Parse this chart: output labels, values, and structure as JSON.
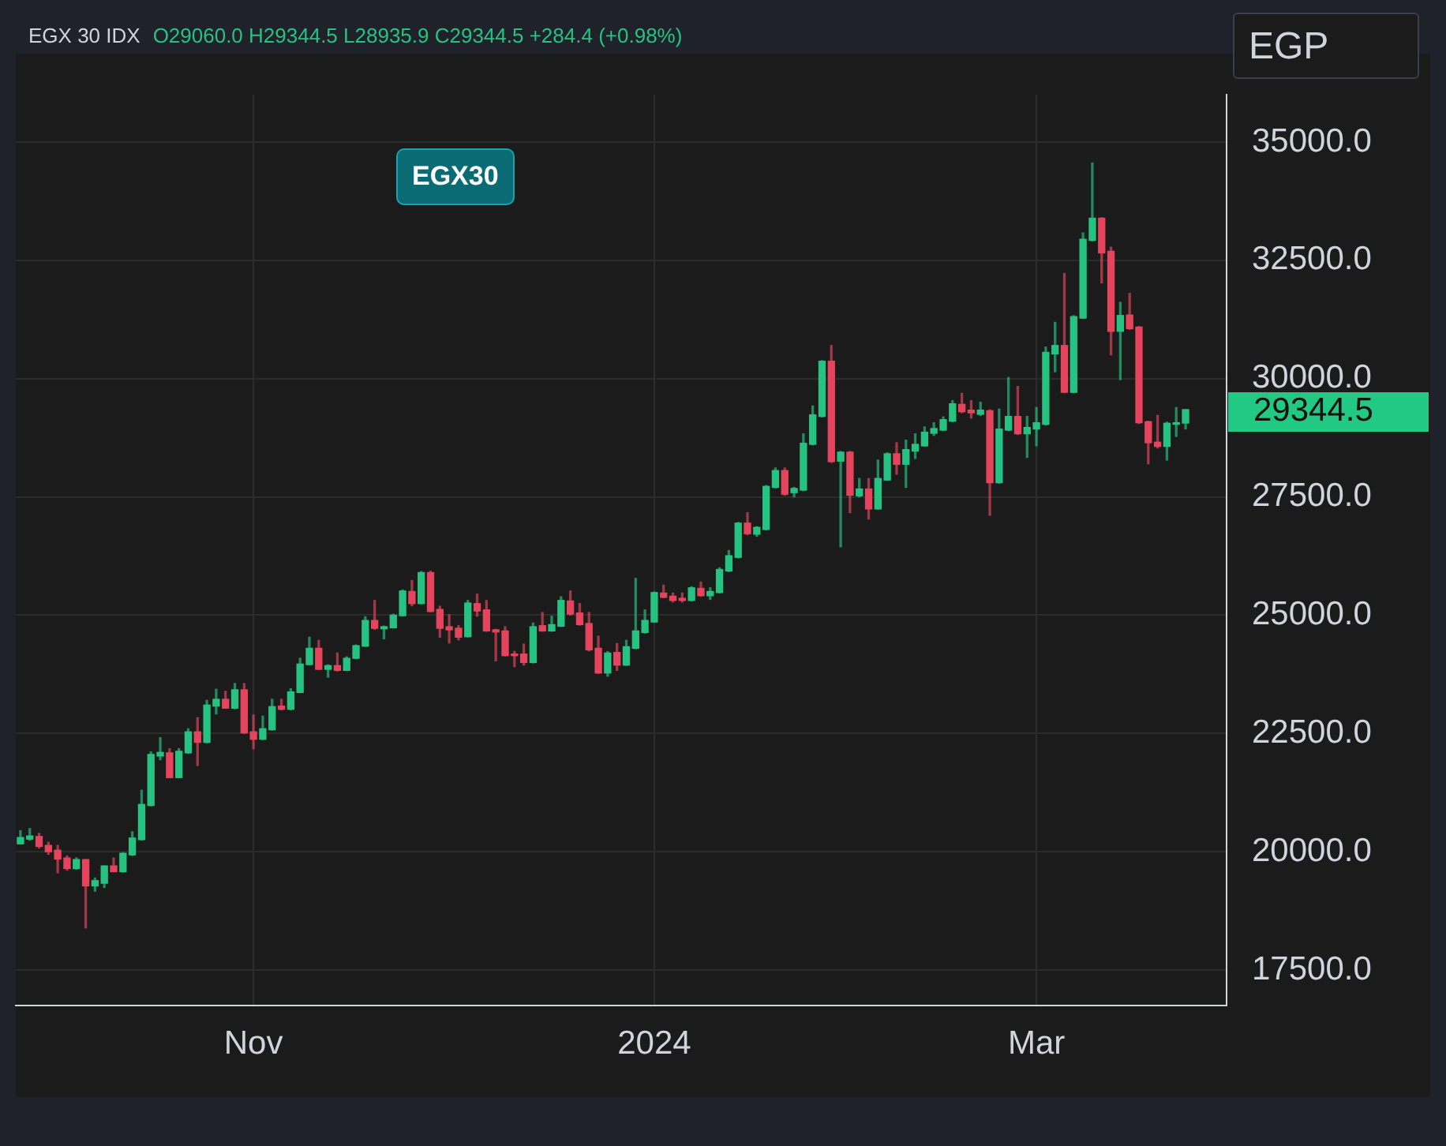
{
  "chart_data": {
    "type": "candlestick",
    "title": "EGX 30 IDX",
    "ylabel": "EGP",
    "annotations": [
      "O29060.0 H29344.5 L28935.9 C29344.5 +284.4 (+0.98%)",
      "EGX30",
      "29344.5"
    ],
    "categories": [
      null,
      null,
      null,
      null,
      null,
      null,
      null,
      null,
      null,
      null,
      null,
      null,
      null,
      null,
      null,
      null,
      null,
      null,
      null,
      null,
      null,
      null,
      null,
      null,
      null,
      "Nov",
      null,
      null,
      null,
      null,
      null,
      null,
      null,
      null,
      null,
      null,
      null,
      null,
      null,
      null,
      null,
      null,
      null,
      null,
      null,
      null,
      null,
      null,
      null,
      null,
      null,
      null,
      null,
      null,
      null,
      null,
      null,
      null,
      null,
      null,
      null,
      null,
      null,
      null,
      null,
      null,
      null,
      null,
      "2024",
      null,
      null,
      null,
      null,
      null,
      null,
      null,
      null,
      null,
      null,
      null,
      null,
      null,
      null,
      null,
      null,
      null,
      null,
      null,
      null,
      null,
      null,
      null,
      null,
      null,
      null,
      null,
      null,
      null,
      null,
      null,
      null,
      null,
      null,
      null,
      null,
      null,
      null,
      null,
      null,
      "Mar",
      null,
      null,
      null,
      null,
      null,
      null,
      null,
      null,
      null,
      null,
      null,
      null,
      null,
      null,
      null,
      null
    ],
    "ohlc": [
      [
        20167,
        20445,
        20167,
        20300
      ],
      [
        20267,
        20490,
        20245,
        20334
      ],
      [
        20323,
        20390,
        20078,
        20112
      ],
      [
        20134,
        20200,
        19945,
        20000
      ],
      [
        20034,
        20134,
        19556,
        19845
      ],
      [
        19867,
        19912,
        19612,
        19645
      ],
      [
        19645,
        19870,
        19630,
        19834
      ],
      [
        19834,
        19834,
        18390,
        19278
      ],
      [
        19278,
        19445,
        19167,
        19390
      ],
      [
        19334,
        19700,
        19245,
        19700
      ],
      [
        19700,
        19867,
        19578,
        19578
      ],
      [
        19578,
        19980,
        19570,
        19967
      ],
      [
        19934,
        20423,
        19920,
        20290
      ],
      [
        20256,
        21300,
        20250,
        21000
      ],
      [
        20978,
        22110,
        20970,
        22056
      ],
      [
        22023,
        22412,
        21945,
        22100
      ],
      [
        22090,
        22178,
        21567,
        21567
      ],
      [
        21567,
        22178,
        21567,
        22123
      ],
      [
        22090,
        22600,
        22080,
        22534
      ],
      [
        22534,
        22834,
        21823,
        22312
      ],
      [
        22312,
        23200,
        22300,
        23100
      ],
      [
        23078,
        23434,
        22912,
        23222
      ],
      [
        23222,
        23390,
        23034,
        23034
      ],
      [
        23034,
        23556,
        23020,
        23423
      ],
      [
        23423,
        23556,
        22500,
        22512
      ],
      [
        22534,
        22890,
        22178,
        22378
      ],
      [
        22378,
        22867,
        22370,
        22600
      ],
      [
        22578,
        23222,
        22570,
        23067
      ],
      [
        23078,
        23222,
        23000,
        23011
      ],
      [
        23011,
        23445,
        23000,
        23378
      ],
      [
        23367,
        24089,
        23360,
        23967
      ],
      [
        23956,
        24534,
        23950,
        24300
      ],
      [
        24300,
        24467,
        23850,
        23856
      ],
      [
        23856,
        23950,
        23690,
        23934
      ],
      [
        23934,
        24200,
        23820,
        23834
      ],
      [
        23834,
        24120,
        23830,
        24089
      ],
      [
        24089,
        24370,
        24080,
        24356
      ],
      [
        24345,
        24967,
        24340,
        24889
      ],
      [
        24889,
        25311,
        24700,
        24723
      ],
      [
        24712,
        24770,
        24500,
        24756
      ],
      [
        24734,
        25020,
        24730,
        25000
      ],
      [
        24989,
        25534,
        24980,
        25511
      ],
      [
        25500,
        25734,
        25200,
        25245
      ],
      [
        25245,
        25923,
        25240,
        25900
      ],
      [
        25900,
        25930,
        25070,
        25078
      ],
      [
        25122,
        25189,
        24534,
        24723
      ],
      [
        24756,
        25011,
        24412,
        24690
      ],
      [
        24723,
        24778,
        24478,
        24534
      ],
      [
        24545,
        25311,
        24540,
        25256
      ],
      [
        25245,
        25445,
        24978,
        25089
      ],
      [
        25111,
        25311,
        24660,
        24667
      ],
      [
        24690,
        24700,
        24034,
        24645
      ],
      [
        24667,
        24756,
        24140,
        24145
      ],
      [
        24178,
        24234,
        23912,
        24145
      ],
      [
        24178,
        24389,
        23945,
        24000
      ],
      [
        24000,
        24834,
        23990,
        24756
      ],
      [
        24778,
        25056,
        24660,
        24667
      ],
      [
        24667,
        24978,
        24660,
        24800
      ],
      [
        24767,
        25389,
        24760,
        25311
      ],
      [
        25300,
        25511,
        25000,
        25023
      ],
      [
        25045,
        25245,
        24790,
        24800
      ],
      [
        24823,
        25056,
        24245,
        24267
      ],
      [
        24300,
        24556,
        23770,
        23778
      ],
      [
        23778,
        24230,
        23710,
        24200
      ],
      [
        24211,
        24400,
        23834,
        23945
      ],
      [
        23945,
        24467,
        23940,
        24334
      ],
      [
        24300,
        25778,
        24290,
        24667
      ],
      [
        24634,
        25111,
        24620,
        24889
      ],
      [
        24856,
        25490,
        24850,
        25478
      ],
      [
        25467,
        25634,
        25370,
        25378
      ],
      [
        25400,
        25467,
        25278,
        25311
      ],
      [
        25356,
        25467,
        25278,
        25311
      ],
      [
        25311,
        25600,
        25300,
        25578
      ],
      [
        25567,
        25700,
        25400,
        25411
      ],
      [
        25411,
        25578,
        25334,
        25500
      ],
      [
        25478,
        26000,
        25470,
        25967
      ],
      [
        25934,
        26367,
        25920,
        26256
      ],
      [
        26222,
        26960,
        26210,
        26945
      ],
      [
        26945,
        27167,
        26700,
        26722
      ],
      [
        26711,
        26870,
        26667,
        26856
      ],
      [
        26811,
        27740,
        26800,
        27722
      ],
      [
        27700,
        28111,
        27690,
        28056
      ],
      [
        28056,
        28111,
        27534,
        27556
      ],
      [
        27589,
        27700,
        27500,
        27678
      ],
      [
        27644,
        28834,
        27630,
        28634
      ],
      [
        28611,
        29422,
        28600,
        29234
      ],
      [
        29200,
        30380,
        29190,
        30367
      ],
      [
        30367,
        30700,
        28230,
        28245
      ],
      [
        28256,
        28460,
        26445,
        28445
      ],
      [
        28445,
        28460,
        27167,
        27534
      ],
      [
        27523,
        27889,
        27500,
        27667
      ],
      [
        27667,
        27889,
        27033,
        27245
      ],
      [
        27245,
        28278,
        27240,
        27889
      ],
      [
        27856,
        28430,
        27850,
        28411
      ],
      [
        28411,
        28645,
        27978,
        28189
      ],
      [
        28189,
        28700,
        27700,
        28500
      ],
      [
        28467,
        28834,
        28311,
        28611
      ],
      [
        28578,
        28978,
        28570,
        28867
      ],
      [
        28845,
        29066,
        28800,
        28945
      ],
      [
        28911,
        29189,
        28900,
        29133
      ],
      [
        29100,
        29533,
        29090,
        29467
      ],
      [
        29456,
        29689,
        29278,
        29300
      ],
      [
        29333,
        29533,
        29167,
        29278
      ],
      [
        29245,
        29500,
        29222,
        29333
      ],
      [
        29322,
        29340,
        27111,
        27800
      ],
      [
        27800,
        29356,
        27790,
        28933
      ],
      [
        28911,
        30022,
        28900,
        29200
      ],
      [
        29200,
        29834,
        28820,
        28834
      ],
      [
        28834,
        29200,
        28334,
        28967
      ],
      [
        28934,
        29389,
        28578,
        29067
      ],
      [
        29034,
        30667,
        29020,
        30556
      ],
      [
        30522,
        31189,
        30145,
        30700
      ],
      [
        30700,
        32222,
        29700,
        29711
      ],
      [
        29711,
        31330,
        29700,
        31311
      ],
      [
        31278,
        33078,
        31270,
        32945
      ],
      [
        32922,
        34556,
        32910,
        33389
      ],
      [
        33389,
        33400,
        32022,
        32656
      ],
      [
        32689,
        32778,
        30500,
        31000
      ],
      [
        31000,
        31611,
        29978,
        31334
      ],
      [
        31344,
        31800,
        31040,
        31056
      ],
      [
        31089,
        31100,
        29050,
        29067
      ],
      [
        29089,
        29100,
        28200,
        28645
      ],
      [
        28656,
        29222,
        28534,
        28567
      ],
      [
        28567,
        29080,
        28278,
        29056
      ],
      [
        29034,
        29389,
        28778,
        29067
      ],
      [
        29060.0,
        29344.5,
        28935.9,
        29344.5
      ]
    ],
    "ylim": [
      16750,
      36000
    ],
    "yticks": [
      {
        "value": 17500,
        "label": "17500.0"
      },
      {
        "value": 20000,
        "label": "20000.0"
      },
      {
        "value": 22500,
        "label": "22500.0"
      },
      {
        "value": 25000,
        "label": "25000.0"
      },
      {
        "value": 27500,
        "label": "27500.0"
      },
      {
        "value": 30000,
        "label": "30000.0"
      },
      {
        "value": 32500,
        "label": "32500.0"
      },
      {
        "value": 35000,
        "label": "35000.0"
      }
    ],
    "grid": true,
    "legend": false
  }
}
